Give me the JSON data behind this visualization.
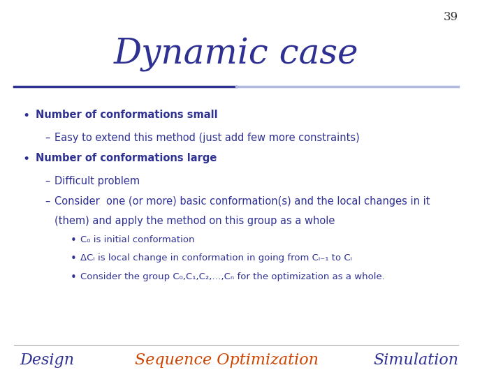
{
  "slide_number": "39",
  "title": "Dynamic case",
  "title_color": "#2E3192",
  "title_fontsize": 36,
  "background_color": "#FFFFFF",
  "slide_number_color": "#333333",
  "slide_number_fontsize": 12,
  "line_color_left": "#2E3192",
  "line_color_right": "#B0B8E0",
  "bullet_color": "#2E3192",
  "text_color": "#2E3192",
  "sub_bullet_color": "#2E3192",
  "footer_design_color": "#2E3192",
  "footer_seqopt_color": "#CC4400",
  "footer_sim_color": "#2E3192",
  "footer_fontsize": 16,
  "content": [
    {
      "level": 1,
      "text": "Number of conformations small"
    },
    {
      "level": 2,
      "text": "Easy to extend this method (just add few more constraints)"
    },
    {
      "level": 1,
      "text": "Number of conformations large"
    },
    {
      "level": 2,
      "text": "Difficult problem"
    },
    {
      "level": 2,
      "text": "Consider  one (or more) basic conformation(s) and the local changes in it\n(them) and apply the method on this group as a whole"
    },
    {
      "level": 3,
      "text": "C₀ is initial conformation"
    },
    {
      "level": 3,
      "text": "ΔCᵢ is local change in conformation in going from Cᵢ₋₁ to Cᵢ"
    },
    {
      "level": 3,
      "text": "Consider the group C₀,C₁,C₂,…,Cₙ for the optimization as a whole."
    }
  ],
  "footer": [
    {
      "text": "Design",
      "color": "#2E3192"
    },
    {
      "text": "Sequence Optimization",
      "color": "#CC4400"
    },
    {
      "text": "Simulation",
      "color": "#2E3192"
    }
  ]
}
